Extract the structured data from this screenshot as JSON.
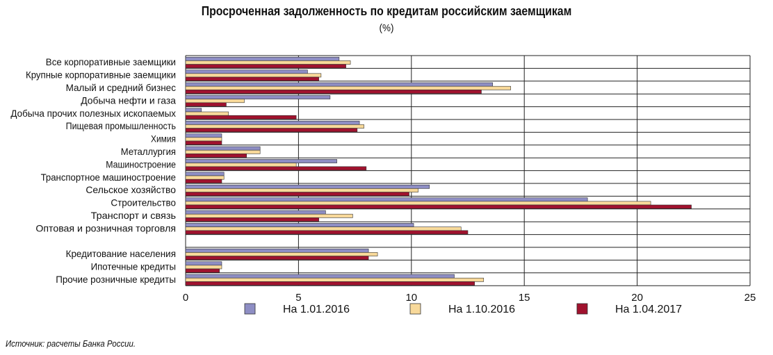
{
  "title": "Просроченная задолженность по кредитам российским заемщикам",
  "subtitle": "(%)",
  "source": "Источник: расчеты Банка России.",
  "colors": {
    "series1": "#8E8EC4",
    "series2": "#F8D99A",
    "series3": "#A0122E"
  },
  "chart_data": {
    "type": "bar",
    "orientation": "horizontal",
    "title": "Просроченная задолженность по кредитам российским заемщикам",
    "subtitle": "(%)",
    "xlim": [
      0,
      25
    ],
    "xticks": [
      "0",
      "5",
      "10",
      "15",
      "20",
      "25"
    ],
    "grid": true,
    "legend_position": "bottom",
    "categories": [
      "Все корпоративные заемщики",
      "Крупные корпоративные заемщики",
      "Малый и средний бизнес",
      "Добыча нефти и газа",
      "Добыча прочих полезных ископаемых",
      "Пищевая промышленность",
      "Химия",
      "Металлургия",
      "Машиностроение",
      "Транспортное машиностроение",
      "Сельское хозяйство",
      "Строительство",
      "Транспорт и связь",
      "Оптовая и розничная торговля",
      "",
      "Кредитование населения",
      "Ипотечные кредиты",
      "Прочие розничные кредиты"
    ],
    "series": [
      {
        "name": "На 1.01.2016",
        "color": "#8E8EC4",
        "values": [
          6.8,
          5.4,
          13.6,
          6.4,
          0.7,
          7.7,
          1.6,
          3.3,
          6.7,
          1.7,
          10.8,
          17.8,
          6.2,
          10.1,
          null,
          8.1,
          1.6,
          11.9
        ]
      },
      {
        "name": "На 1.10.2016",
        "color": "#F8D99A",
        "values": [
          7.3,
          6.0,
          14.4,
          2.6,
          1.9,
          7.9,
          1.6,
          3.3,
          4.9,
          1.7,
          10.3,
          20.6,
          7.4,
          12.2,
          null,
          8.5,
          1.6,
          13.2
        ]
      },
      {
        "name": "На 1.04.2017",
        "color": "#A0122E",
        "values": [
          7.1,
          5.9,
          13.1,
          1.8,
          4.9,
          7.6,
          1.6,
          2.7,
          8.0,
          1.6,
          9.9,
          22.4,
          5.9,
          12.5,
          null,
          8.1,
          1.5,
          12.8
        ]
      }
    ]
  }
}
